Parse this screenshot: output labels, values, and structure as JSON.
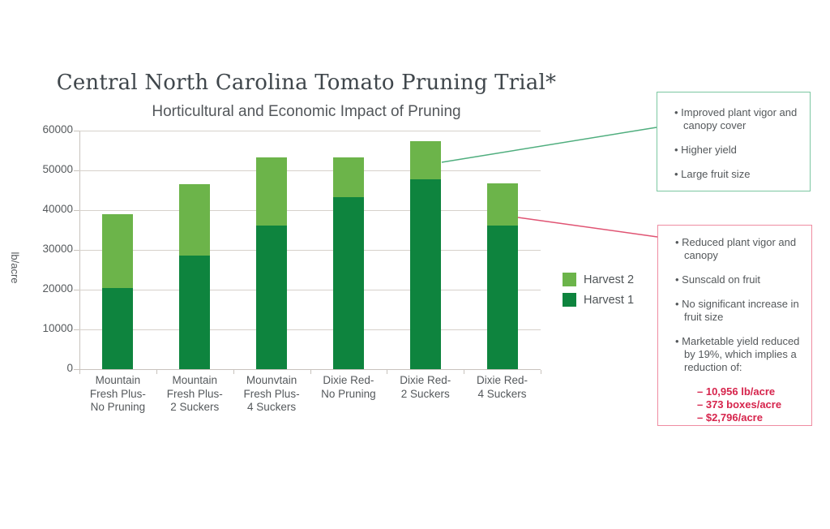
{
  "colors": {
    "harvest1": "#0e843e",
    "harvest2": "#6cb44a",
    "benefit_line": "#4fae7e",
    "benefit_border": "#7cc7a1",
    "drawback_line": "#e05473",
    "drawback_border": "#ef8ca1",
    "reduction_text": "#d6244c",
    "title_text": "#3f464b",
    "body_text": "#54585b",
    "axis_text": "#55595c",
    "gridline": "#d6d1cb"
  },
  "chart_data": {
    "type": "bar",
    "stacked": true,
    "title": "Central North Carolina Tomato Pruning Trial*",
    "subtitle": "Horticultural and Economic Impact of Pruning",
    "ylabel": "lb/acre",
    "xlabel": "",
    "ylim": [
      0,
      60000
    ],
    "yticks": [
      0,
      10000,
      20000,
      30000,
      40000,
      50000,
      60000
    ],
    "grid": true,
    "legend_position": "right-middle",
    "categories": [
      [
        "Mountain",
        "Fresh Plus-",
        "No Pruning"
      ],
      [
        "Mountain",
        "Fresh Plus-",
        "2 Suckers"
      ],
      [
        "Mounvtain",
        "Fresh Plus-",
        "4 Suckers"
      ],
      [
        "Dixie Red-",
        "No Pruning"
      ],
      [
        "Dixie Red-",
        "2 Suckers"
      ],
      [
        "Dixie Red-",
        "4 Suckers"
      ]
    ],
    "series": [
      {
        "name": "Harvest 1",
        "color": "#0e843e",
        "values": [
          20500,
          28600,
          36100,
          43200,
          47700,
          36100
        ]
      },
      {
        "name": "Harvest 2",
        "color": "#6cb44a",
        "values": [
          18400,
          17900,
          17200,
          10100,
          9700,
          10600
        ]
      }
    ],
    "legend": {
      "entries": [
        "Harvest 2",
        "Harvest 1"
      ]
    }
  },
  "annotations": {
    "benefits": {
      "items": [
        "Improved plant vigor and canopy cover",
        "Higher yield",
        "Large fruit size"
      ]
    },
    "drawbacks": {
      "items": [
        "Reduced plant vigor and canopy",
        "Sunscald on fruit",
        "No significant increase in fruit size",
        "Marketable yield reduced by 19%, which implies a reduction of:"
      ],
      "reduction_items": [
        "– 10,956 lb/acre",
        "– 373 boxes/acre",
        "– $2,796/acre"
      ]
    }
  }
}
